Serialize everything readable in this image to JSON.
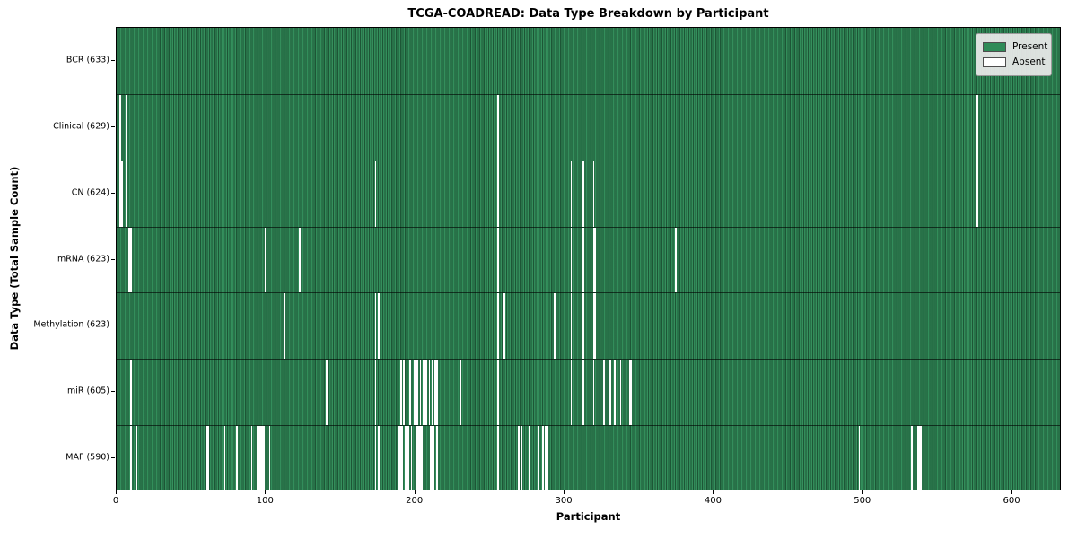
{
  "chart_data": {
    "type": "heatmap",
    "title": "TCGA-COADREAD: Data Type Breakdown by Participant",
    "xlabel": "Participant",
    "ylabel": "Data Type (Total Sample Count)",
    "total_participants": 633,
    "x_range": [
      0,
      633
    ],
    "xticks": [
      0,
      100,
      200,
      300,
      400,
      500,
      600
    ],
    "grid": false,
    "colors": {
      "present": "#2e8b57",
      "absent": "#ffffff",
      "bar_edge": "#1f5a38",
      "figure_bg": "#ffffff",
      "axes_frame": "#000000"
    },
    "legend": {
      "position": "upper right",
      "items": [
        {
          "label": "Present",
          "color": "#2e8b57"
        },
        {
          "label": "Absent",
          "color": "#ffffff"
        }
      ]
    },
    "rows": [
      {
        "id": "bcr",
        "label": "BCR (633)",
        "data_type": "BCR",
        "sample_count": 633,
        "absent_participants": []
      },
      {
        "id": "clinical",
        "label": "Clinical (629)",
        "data_type": "Clinical",
        "sample_count": 629,
        "absent_participants": [
          2,
          6,
          255,
          576
        ]
      },
      {
        "id": "cn",
        "label": "CN (624)",
        "data_type": "CN",
        "sample_count": 624,
        "absent_participants": [
          2,
          3,
          6,
          173,
          255,
          304,
          312,
          319,
          576
        ]
      },
      {
        "id": "mrna",
        "label": "mRNA (623)",
        "data_type": "mRNA",
        "sample_count": 623,
        "absent_participants": [
          8,
          9,
          99,
          122,
          255,
          304,
          312,
          319,
          320,
          374
        ]
      },
      {
        "id": "methylation",
        "label": "Methylation (623)",
        "data_type": "Methylation",
        "sample_count": 623,
        "absent_participants": [
          112,
          173,
          175,
          255,
          259,
          293,
          304,
          312,
          319,
          320
        ]
      },
      {
        "id": "mir",
        "label": "miR (605)",
        "data_type": "miR",
        "sample_count": 605,
        "absent_participants": [
          9,
          140,
          173,
          188,
          190,
          192,
          194,
          196,
          199,
          201,
          203,
          205,
          207,
          209,
          211,
          213,
          214,
          230,
          255,
          304,
          312,
          319,
          326,
          330,
          333,
          337,
          343,
          344
        ]
      },
      {
        "id": "maf",
        "label": "MAF (590)",
        "data_type": "MAF",
        "sample_count": 590,
        "absent_participants": [
          9,
          13,
          60,
          61,
          72,
          80,
          90,
          94,
          95,
          96,
          97,
          98,
          102,
          173,
          175,
          188,
          189,
          190,
          191,
          193,
          195,
          197,
          201,
          202,
          203,
          204,
          210,
          211,
          212,
          214,
          255,
          269,
          271,
          276,
          282,
          285,
          287,
          288,
          497,
          532,
          536,
          537,
          538
        ]
      }
    ]
  }
}
